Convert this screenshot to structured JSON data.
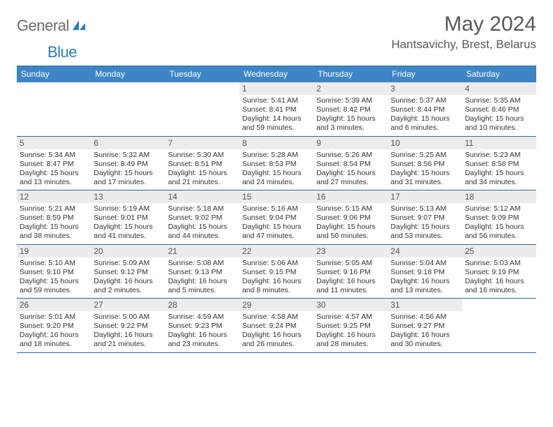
{
  "logo": {
    "text1": "General",
    "text2": "Blue"
  },
  "title": "May 2024",
  "location": "Hantsavichy, Brest, Belarus",
  "colors": {
    "header_bg": "#3d85c6",
    "header_text": "#ffffff",
    "rule": "#2a6aa0",
    "daynum_bg": "#ececec",
    "logo_gray": "#6b6b6b",
    "logo_blue": "#2a7bbf",
    "title_color": "#595959"
  },
  "day_names": [
    "Sunday",
    "Monday",
    "Tuesday",
    "Wednesday",
    "Thursday",
    "Friday",
    "Saturday"
  ],
  "weeks": [
    [
      {
        "n": "",
        "sr": "",
        "ss": "",
        "dl": ""
      },
      {
        "n": "",
        "sr": "",
        "ss": "",
        "dl": ""
      },
      {
        "n": "",
        "sr": "",
        "ss": "",
        "dl": ""
      },
      {
        "n": "1",
        "sr": "5:41 AM",
        "ss": "8:41 PM",
        "dl": "14 hours and 59 minutes."
      },
      {
        "n": "2",
        "sr": "5:39 AM",
        "ss": "8:42 PM",
        "dl": "15 hours and 3 minutes."
      },
      {
        "n": "3",
        "sr": "5:37 AM",
        "ss": "8:44 PM",
        "dl": "15 hours and 6 minutes."
      },
      {
        "n": "4",
        "sr": "5:35 AM",
        "ss": "8:46 PM",
        "dl": "15 hours and 10 minutes."
      }
    ],
    [
      {
        "n": "5",
        "sr": "5:34 AM",
        "ss": "8:47 PM",
        "dl": "15 hours and 13 minutes."
      },
      {
        "n": "6",
        "sr": "5:32 AM",
        "ss": "8:49 PM",
        "dl": "15 hours and 17 minutes."
      },
      {
        "n": "7",
        "sr": "5:30 AM",
        "ss": "8:51 PM",
        "dl": "15 hours and 21 minutes."
      },
      {
        "n": "8",
        "sr": "5:28 AM",
        "ss": "8:53 PM",
        "dl": "15 hours and 24 minutes."
      },
      {
        "n": "9",
        "sr": "5:26 AM",
        "ss": "8:54 PM",
        "dl": "15 hours and 27 minutes."
      },
      {
        "n": "10",
        "sr": "5:25 AM",
        "ss": "8:56 PM",
        "dl": "15 hours and 31 minutes."
      },
      {
        "n": "11",
        "sr": "5:23 AM",
        "ss": "8:58 PM",
        "dl": "15 hours and 34 minutes."
      }
    ],
    [
      {
        "n": "12",
        "sr": "5:21 AM",
        "ss": "8:59 PM",
        "dl": "15 hours and 38 minutes."
      },
      {
        "n": "13",
        "sr": "5:19 AM",
        "ss": "9:01 PM",
        "dl": "15 hours and 41 minutes."
      },
      {
        "n": "14",
        "sr": "5:18 AM",
        "ss": "9:02 PM",
        "dl": "15 hours and 44 minutes."
      },
      {
        "n": "15",
        "sr": "5:16 AM",
        "ss": "9:04 PM",
        "dl": "15 hours and 47 minutes."
      },
      {
        "n": "16",
        "sr": "5:15 AM",
        "ss": "9:06 PM",
        "dl": "15 hours and 50 minutes."
      },
      {
        "n": "17",
        "sr": "5:13 AM",
        "ss": "9:07 PM",
        "dl": "15 hours and 53 minutes."
      },
      {
        "n": "18",
        "sr": "5:12 AM",
        "ss": "9:09 PM",
        "dl": "15 hours and 56 minutes."
      }
    ],
    [
      {
        "n": "19",
        "sr": "5:10 AM",
        "ss": "9:10 PM",
        "dl": "15 hours and 59 minutes."
      },
      {
        "n": "20",
        "sr": "5:09 AM",
        "ss": "9:12 PM",
        "dl": "16 hours and 2 minutes."
      },
      {
        "n": "21",
        "sr": "5:08 AM",
        "ss": "9:13 PM",
        "dl": "16 hours and 5 minutes."
      },
      {
        "n": "22",
        "sr": "5:06 AM",
        "ss": "9:15 PM",
        "dl": "16 hours and 8 minutes."
      },
      {
        "n": "23",
        "sr": "5:05 AM",
        "ss": "9:16 PM",
        "dl": "16 hours and 11 minutes."
      },
      {
        "n": "24",
        "sr": "5:04 AM",
        "ss": "9:18 PM",
        "dl": "16 hours and 13 minutes."
      },
      {
        "n": "25",
        "sr": "5:03 AM",
        "ss": "9:19 PM",
        "dl": "16 hours and 16 minutes."
      }
    ],
    [
      {
        "n": "26",
        "sr": "5:01 AM",
        "ss": "9:20 PM",
        "dl": "16 hours and 18 minutes."
      },
      {
        "n": "27",
        "sr": "5:00 AM",
        "ss": "9:22 PM",
        "dl": "16 hours and 21 minutes."
      },
      {
        "n": "28",
        "sr": "4:59 AM",
        "ss": "9:23 PM",
        "dl": "16 hours and 23 minutes."
      },
      {
        "n": "29",
        "sr": "4:58 AM",
        "ss": "9:24 PM",
        "dl": "16 hours and 26 minutes."
      },
      {
        "n": "30",
        "sr": "4:57 AM",
        "ss": "9:25 PM",
        "dl": "16 hours and 28 minutes."
      },
      {
        "n": "31",
        "sr": "4:56 AM",
        "ss": "9:27 PM",
        "dl": "16 hours and 30 minutes."
      },
      {
        "n": "",
        "sr": "",
        "ss": "",
        "dl": ""
      }
    ]
  ],
  "labels": {
    "sunrise": "Sunrise:",
    "sunset": "Sunset:",
    "daylight": "Daylight:"
  }
}
